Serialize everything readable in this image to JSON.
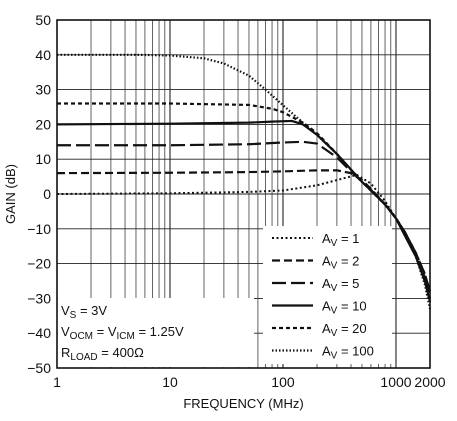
{
  "chart_data": {
    "type": "line",
    "xlabel": "FREQUENCY (MHz)",
    "ylabel": "GAIN (dB)",
    "x_scale": "log",
    "xlim": [
      1,
      2000
    ],
    "ylim": [
      -50,
      50
    ],
    "x_ticks": [
      {
        "value": 1,
        "label": "1"
      },
      {
        "value": 10,
        "label": "10"
      },
      {
        "value": 100,
        "label": "100"
      },
      {
        "value": 1000,
        "label": "1000"
      },
      {
        "value": 2000,
        "label": "2000"
      }
    ],
    "y_ticks": [
      {
        "value": -50,
        "label": "−50"
      },
      {
        "value": -40,
        "label": "−40"
      },
      {
        "value": -30,
        "label": "−30"
      },
      {
        "value": -20,
        "label": "−20"
      },
      {
        "value": -10,
        "label": "−10"
      },
      {
        "value": 0,
        "label": "0"
      },
      {
        "value": 10,
        "label": "10"
      },
      {
        "value": 20,
        "label": "20"
      },
      {
        "value": 30,
        "label": "30"
      },
      {
        "value": 40,
        "label": "40"
      },
      {
        "value": 50,
        "label": "50"
      }
    ],
    "grid": true,
    "legend_position": "bottom-right",
    "series": [
      {
        "sub": "V",
        "value_text": " = 1",
        "dash": "2 2.5",
        "stroke": 2,
        "x": [
          1,
          10,
          50,
          100,
          200,
          300,
          450,
          600,
          800,
          1000,
          1200,
          1500,
          1800,
          2000
        ],
        "y": [
          0,
          0.2,
          0.6,
          1,
          2.5,
          4,
          5.5,
          3,
          -2,
          -7,
          -12,
          -18,
          -25,
          -30
        ]
      },
      {
        "sub": "V",
        "value_text": " = 2",
        "dash": "8 4",
        "stroke": 2.2,
        "x": [
          1,
          10,
          50,
          100,
          200,
          300,
          400,
          500,
          600,
          800,
          1000,
          1200,
          1500,
          1800,
          2000
        ],
        "y": [
          6,
          6.1,
          6.3,
          6.5,
          6.8,
          6.8,
          6,
          4,
          1.5,
          -3,
          -7,
          -11,
          -17,
          -24,
          -30
        ]
      },
      {
        "sub": "V",
        "value_text": " = 5",
        "dash": "14 5",
        "stroke": 2.2,
        "x": [
          1,
          10,
          50,
          100,
          150,
          200,
          300,
          400,
          500,
          600,
          800,
          1000,
          1200,
          1500,
          1800,
          2000
        ],
        "y": [
          14,
          14,
          14.3,
          14.8,
          15,
          14.5,
          10.5,
          6.5,
          3.5,
          1.2,
          -3,
          -7,
          -11,
          -17,
          -23,
          -28
        ]
      },
      {
        "sub": "V",
        "value_text": " = 10",
        "dash": "",
        "stroke": 2.2,
        "x": [
          1,
          10,
          50,
          80,
          120,
          150,
          200,
          300,
          400,
          500,
          600,
          800,
          1000,
          1200,
          1500,
          1800,
          2000
        ],
        "y": [
          20,
          20.2,
          20.5,
          20.8,
          21,
          20,
          17,
          11.5,
          7,
          3.5,
          1,
          -3,
          -7,
          -12,
          -18,
          -25,
          -31
        ]
      },
      {
        "sub": "V",
        "value_text": " = 20",
        "dash": "4 3",
        "stroke": 2.2,
        "x": [
          1,
          10,
          50,
          80,
          100,
          150,
          200,
          300,
          400,
          500,
          600,
          800,
          1000,
          1200,
          1500,
          1800,
          2000
        ],
        "y": [
          26,
          26,
          25.6,
          24.5,
          23.5,
          20.5,
          17.5,
          11.5,
          7,
          3.5,
          1,
          -3,
          -7,
          -11,
          -17,
          -23,
          -28
        ]
      },
      {
        "sub": "V",
        "value_text": " = 100",
        "dash": "1.5 2",
        "stroke": 2.2,
        "x": [
          1,
          5,
          10,
          20,
          30,
          50,
          70,
          100,
          150,
          200,
          300,
          400,
          500,
          600,
          800,
          1000,
          1200,
          1500,
          1800,
          2000
        ],
        "y": [
          40,
          40,
          39.8,
          39,
          37.5,
          34,
          30,
          25.5,
          20.5,
          17,
          11.5,
          7,
          3.5,
          1,
          -3,
          -7,
          -11,
          -18,
          -26,
          -33
        ]
      }
    ],
    "annotations": [
      {
        "main": "V",
        "sub": "S",
        "rest": " = 3V"
      },
      {
        "main": "V",
        "sub": "OCM",
        "rest": " = V",
        "sub2": "ICM",
        "rest2": " = 1.25V"
      },
      {
        "main": "R",
        "sub": "LOAD",
        "rest": " = 400Ω"
      }
    ],
    "line_color": "#111111"
  }
}
